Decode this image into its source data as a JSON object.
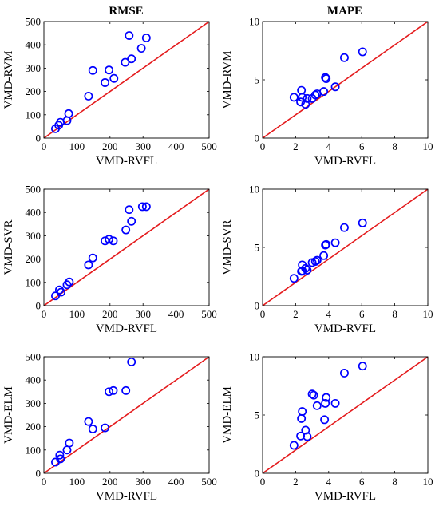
{
  "column_titles": [
    "RMSE",
    "MAPE"
  ],
  "colors": {
    "points": "#0000ff",
    "diagonal": "#e41a1c",
    "axes": "#000000"
  },
  "chart_data": [
    {
      "type": "scatter",
      "title": "RMSE",
      "xlabel": "VMD-RVFL",
      "ylabel": "VMD-RVM",
      "xlim": [
        0,
        500
      ],
      "ylim": [
        0,
        500
      ],
      "xticks": [
        0,
        100,
        200,
        300,
        400,
        500
      ],
      "yticks": [
        0,
        100,
        200,
        300,
        400,
        500
      ],
      "reference_line": "y = x",
      "x": [
        35,
        45,
        50,
        70,
        75,
        135,
        148,
        185,
        197,
        212,
        246,
        258,
        265,
        295,
        310
      ],
      "y": [
        40,
        55,
        68,
        75,
        105,
        180,
        290,
        238,
        292,
        256,
        325,
        440,
        340,
        385,
        430
      ]
    },
    {
      "type": "scatter",
      "title": "MAPE",
      "xlabel": "VMD-RVFL",
      "ylabel": "VMD-RVM",
      "xlim": [
        0,
        10
      ],
      "ylim": [
        0,
        10
      ],
      "xticks": [
        0,
        2,
        4,
        6,
        8,
        10
      ],
      "yticks": [
        0,
        5,
        10
      ],
      "reference_line": "y = x",
      "x": [
        1.9,
        2.3,
        2.35,
        2.4,
        2.6,
        2.7,
        3.0,
        3.2,
        3.3,
        3.7,
        3.8,
        3.85,
        4.4,
        4.95,
        6.05
      ],
      "y": [
        3.5,
        3.1,
        4.1,
        3.5,
        2.9,
        3.4,
        3.4,
        3.7,
        3.8,
        4.0,
        5.2,
        5.1,
        4.4,
        6.9,
        7.4
      ]
    },
    {
      "type": "scatter",
      "title": "",
      "xlabel": "VMD-RVFL",
      "ylabel": "VMD-SVR",
      "xlim": [
        0,
        500
      ],
      "ylim": [
        0,
        500
      ],
      "xticks": [
        0,
        100,
        200,
        300,
        400,
        500
      ],
      "yticks": [
        0,
        100,
        200,
        300,
        400,
        500
      ],
      "reference_line": "y = x",
      "x": [
        35,
        47,
        52,
        70,
        77,
        135,
        148,
        185,
        197,
        210,
        248,
        258,
        265,
        298,
        310
      ],
      "y": [
        42,
        68,
        58,
        90,
        102,
        175,
        205,
        278,
        285,
        278,
        325,
        412,
        362,
        425,
        425
      ]
    },
    {
      "type": "scatter",
      "title": "",
      "xlabel": "VMD-RVFL",
      "ylabel": "VMD-SVR",
      "xlim": [
        0,
        10
      ],
      "ylim": [
        0,
        10
      ],
      "xticks": [
        0,
        2,
        4,
        6,
        8,
        10
      ],
      "yticks": [
        0,
        5,
        10
      ],
      "reference_line": "y = x",
      "x": [
        1.9,
        2.35,
        2.4,
        2.4,
        2.6,
        2.7,
        3.0,
        3.2,
        3.3,
        3.7,
        3.8,
        3.85,
        4.4,
        4.95,
        6.05
      ],
      "y": [
        2.35,
        2.95,
        3.0,
        3.5,
        3.2,
        3.05,
        3.7,
        3.8,
        3.9,
        4.3,
        5.2,
        5.25,
        5.4,
        6.7,
        7.1
      ]
    },
    {
      "type": "scatter",
      "title": "",
      "xlabel": "VMD-RVFL",
      "ylabel": "VMD-ELM",
      "xlim": [
        0,
        500
      ],
      "ylim": [
        0,
        500
      ],
      "xticks": [
        0,
        100,
        200,
        300,
        400,
        500
      ],
      "yticks": [
        0,
        100,
        200,
        300,
        400,
        500
      ],
      "reference_line": "y = x",
      "x": [
        35,
        48,
        50,
        70,
        77,
        135,
        148,
        185,
        197,
        210,
        248,
        265
      ],
      "y": [
        48,
        78,
        62,
        100,
        130,
        222,
        190,
        195,
        350,
        355,
        355,
        478
      ]
    },
    {
      "type": "scatter",
      "title": "",
      "xlabel": "VMD-RVFL",
      "ylabel": "VMD-ELM",
      "xlim": [
        0,
        10
      ],
      "ylim": [
        0,
        10
      ],
      "xticks": [
        0,
        2,
        4,
        6,
        8,
        10
      ],
      "yticks": [
        0,
        5,
        10
      ],
      "reference_line": "y = x",
      "x": [
        1.9,
        2.3,
        2.35,
        2.4,
        2.6,
        2.7,
        3.0,
        3.1,
        3.3,
        3.75,
        3.8,
        3.85,
        4.4,
        4.95,
        6.05
      ],
      "y": [
        2.4,
        3.2,
        4.7,
        5.3,
        3.7,
        3.15,
        6.8,
        6.7,
        5.8,
        4.6,
        6.0,
        6.5,
        6.0,
        8.6,
        9.2
      ]
    }
  ]
}
